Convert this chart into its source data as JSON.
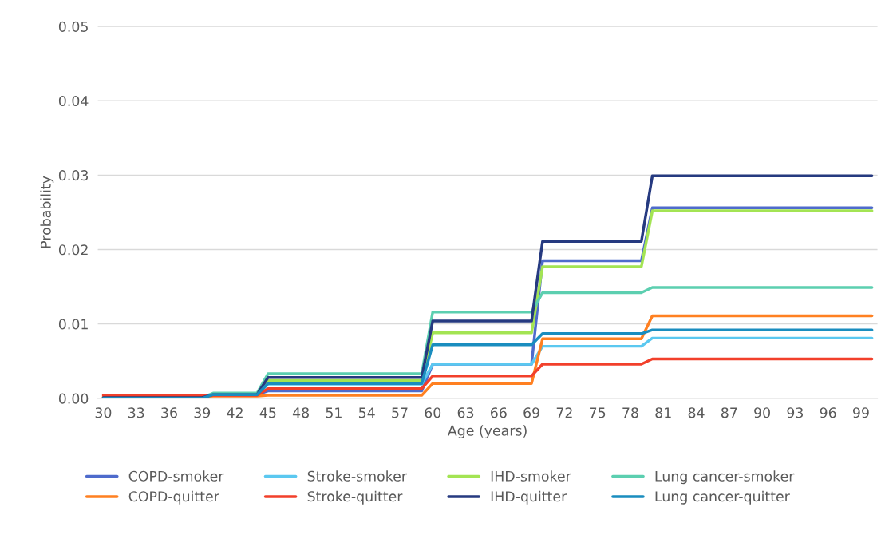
{
  "chart_data": {
    "type": "line",
    "xlabel": "Age (years)",
    "ylabel": "Probability",
    "x": [
      30,
      39,
      40,
      44,
      45,
      59,
      60,
      69,
      70,
      79,
      80,
      100
    ],
    "xlim": [
      29.5,
      100.5
    ],
    "xticks": [
      30,
      33,
      36,
      39,
      42,
      45,
      48,
      51,
      54,
      57,
      60,
      63,
      66,
      69,
      72,
      75,
      78,
      81,
      84,
      87,
      90,
      93,
      96,
      99
    ],
    "ylim": [
      0,
      0.05
    ],
    "yticks": [
      {
        "value": 0,
        "label": "0.00"
      },
      {
        "value": 0.01,
        "label": "0.01"
      },
      {
        "value": 0.02,
        "label": "0.02"
      },
      {
        "value": 0.03,
        "label": "0.03"
      },
      {
        "value": 0.04,
        "label": "0.04"
      },
      {
        "value": 0.05,
        "label": "0.05"
      }
    ],
    "grid": "y",
    "legend": "bottom",
    "marker": "none",
    "line_style": "solid",
    "series": [
      {
        "name": "COPD-smoker",
        "color": "#4e6bcc",
        "values": [
          0.0001,
          0.0001,
          0.0005,
          0.0005,
          0.001,
          0.001,
          0.0046,
          0.0046,
          0.0185,
          0.0185,
          0.0256,
          0.0256
        ]
      },
      {
        "name": "Stroke-smoker",
        "color": "#5bc8f0",
        "values": [
          null,
          null,
          null,
          0.0005,
          0.0019,
          0.0019,
          0.0046,
          0.0046,
          0.007,
          0.007,
          0.0081,
          0.0081
        ]
      },
      {
        "name": "IHD-smoker",
        "color": "#a3e453",
        "values": [
          null,
          null,
          null,
          0.0005,
          0.0024,
          0.0024,
          0.0088,
          0.0088,
          0.0177,
          0.0177,
          0.0252,
          0.0252
        ]
      },
      {
        "name": "Lung cancer-smoker",
        "color": "#5ccfb0",
        "values": [
          0.0001,
          0.0001,
          0.0007,
          0.0007,
          0.0033,
          0.0033,
          0.0116,
          0.0116,
          0.0142,
          0.0142,
          0.0149,
          0.0149
        ]
      },
      {
        "name": "COPD-quitter",
        "color": "#ff8021",
        "values": [
          0.0002,
          0.0002,
          0.0003,
          0.0003,
          0.0004,
          0.0004,
          0.002,
          0.002,
          0.008,
          0.008,
          0.0111,
          0.0111
        ]
      },
      {
        "name": "Stroke-quitter",
        "color": "#f2402b",
        "values": [
          0.0004,
          0.0004,
          0.0004,
          0.0004,
          0.0013,
          0.0013,
          0.003,
          0.003,
          0.0046,
          0.0046,
          0.0053,
          0.0053
        ]
      },
      {
        "name": "IHD-quitter",
        "color": "#263a80",
        "values": [
          0.0001,
          0.0001,
          0.0005,
          0.0005,
          0.0028,
          0.0028,
          0.0104,
          0.0104,
          0.0211,
          0.0211,
          0.0299,
          0.0299
        ]
      },
      {
        "name": "Lung cancer-quitter",
        "color": "#1a8dbf",
        "values": [
          0.0,
          0.0,
          0.0005,
          0.0005,
          0.002,
          0.002,
          0.0072,
          0.0072,
          0.0087,
          0.0087,
          0.0092,
          0.0092
        ]
      }
    ]
  }
}
